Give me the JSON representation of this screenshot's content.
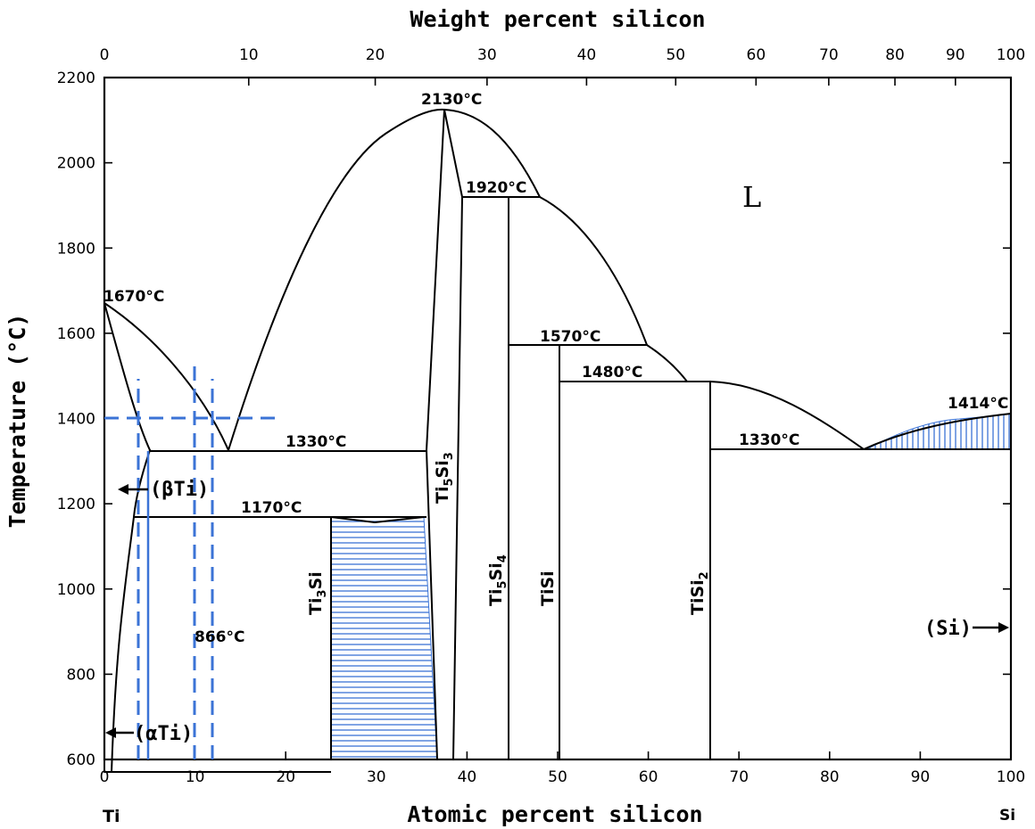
{
  "chart_data": {
    "type": "phase_diagram",
    "system": "Ti-Si",
    "x_bottom": {
      "label": "Atomic percent silicon",
      "range": [
        0,
        100
      ],
      "ticks": [
        0,
        10,
        20,
        30,
        40,
        50,
        60,
        70,
        80,
        90,
        100
      ]
    },
    "x_top": {
      "label": "Weight percent silicon",
      "ticks": [
        0,
        10,
        20,
        30,
        40,
        50,
        60,
        70,
        80,
        90,
        100
      ]
    },
    "y": {
      "label": "Temperature (°C)",
      "range": [
        600,
        2200
      ],
      "ticks": [
        600,
        800,
        1000,
        1200,
        1400,
        1600,
        1800,
        2000,
        2200
      ]
    },
    "end_labels": {
      "left": "Ti",
      "right": "Si"
    },
    "liquid_label": "L",
    "annotations": [
      {
        "text": "1670°C",
        "at": 1670
      },
      {
        "text": "2130°C",
        "at": 2130
      },
      {
        "text": "1920°C",
        "at": 1920
      },
      {
        "text": "1570°C",
        "at": 1570
      },
      {
        "text": "1480°C",
        "at": 1480
      },
      {
        "text": "1414°C",
        "at": 1414
      },
      {
        "text": "1330°C",
        "at": 1330
      },
      {
        "text": "1330°C",
        "at": 1330
      },
      {
        "text": "1170°C",
        "at": 1170
      },
      {
        "text": "866°C",
        "at": 866
      }
    ],
    "phases": [
      "(βTi)",
      "(αTi)",
      "(Si)"
    ],
    "compounds": [
      {
        "name": "Ti₃Si",
        "base": "Ti",
        "sub1": "3",
        "mid": "Si",
        "sub2": "",
        "at_pct": 25
      },
      {
        "name": "Ti₅Si₃",
        "base": "Ti",
        "sub1": "5",
        "mid": "Si",
        "sub2": "3",
        "at_pct": 37.5
      },
      {
        "name": "Ti₅Si₄",
        "base": "Ti",
        "sub1": "5",
        "mid": "Si",
        "sub2": "4",
        "at_pct": 44.4
      },
      {
        "name": "TiSi",
        "base": "TiSi",
        "sub1": "",
        "mid": "",
        "sub2": "",
        "at_pct": 50
      },
      {
        "name": "TiSi₂",
        "base": "TiSi",
        "sub1": "2",
        "mid": "",
        "sub2": "",
        "at_pct": 66.7
      }
    ],
    "invariant_lines": [
      {
        "temp": 1330,
        "from": 5,
        "to": 35.5
      },
      {
        "temp": 1170,
        "from": 3.5,
        "to": 35.5
      },
      {
        "temp": 866,
        "from": 1,
        "to": 25
      },
      {
        "temp": 1920,
        "from": 39.5,
        "to": 48
      },
      {
        "temp": 1570,
        "from": 44.4,
        "to": 59.5
      },
      {
        "temp": 1480,
        "from": 50,
        "to": 66.7
      },
      {
        "temp": 1330,
        "from": 66.7,
        "to": 100
      }
    ],
    "guide_lines": {
      "color": "#3b73d6",
      "horizontal": [
        {
          "temp": 1405,
          "from": 0,
          "to": 19.5
        }
      ],
      "vertical": [
        {
          "at_pct": 3.7,
          "from": 600,
          "to": 1495
        },
        {
          "at_pct": 10,
          "from": 600,
          "to": 1545
        },
        {
          "at_pct": 12,
          "from": 600,
          "to": 1495
        }
      ],
      "solid_vertical": [
        {
          "at_pct": 4.8,
          "from": 600,
          "to": 1320
        }
      ]
    }
  }
}
